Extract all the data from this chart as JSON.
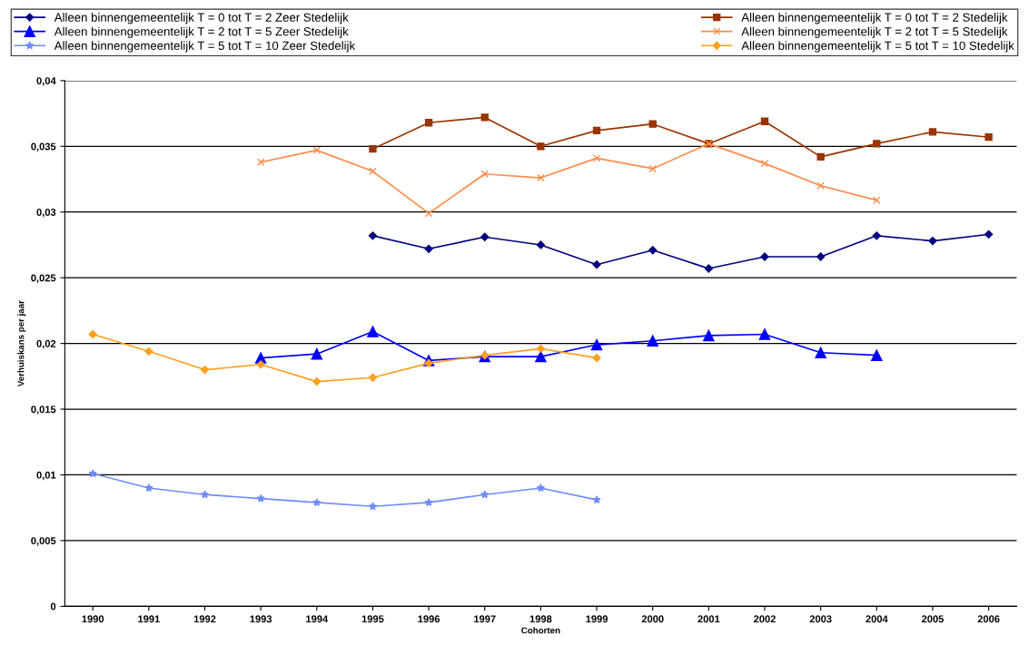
{
  "chart_data": {
    "type": "line",
    "xlabel": "Cohorten",
    "ylabel": "Verhuiskans per jaar",
    "categories": [
      "1990",
      "1991",
      "1992",
      "1993",
      "1994",
      "1995",
      "1996",
      "1997",
      "1998",
      "1999",
      "2000",
      "2001",
      "2002",
      "2003",
      "2004",
      "2005",
      "2006"
    ],
    "series": [
      {
        "name": "Alleen binnengemeentelijk T = 0 tot T = 2 Zeer Stedelijk",
        "color": "#000080",
        "marker": "diamond",
        "values": [
          null,
          null,
          null,
          null,
          null,
          0.0282,
          0.0272,
          0.0281,
          0.0275,
          0.026,
          0.0271,
          0.0257,
          0.0266,
          0.0266,
          0.0282,
          0.0278,
          0.0283
        ]
      },
      {
        "name": "Alleen binnengemeentelijk T = 0 tot T = 2 Stedelijk",
        "color": "#993300",
        "marker": "square",
        "values": [
          null,
          null,
          null,
          null,
          null,
          0.0348,
          0.0368,
          0.0372,
          0.035,
          0.0362,
          0.0367,
          0.0352,
          0.0369,
          0.0342,
          0.0352,
          0.0361,
          0.0357
        ]
      },
      {
        "name": "Alleen binnengemeentelijk T = 2 tot T = 5 Zeer Stedelijk",
        "color": "#0000ff",
        "marker": "triangle",
        "values": [
          null,
          null,
          null,
          0.0189,
          0.0192,
          0.0209,
          0.0187,
          0.019,
          0.019,
          0.0199,
          0.0202,
          0.0206,
          0.0207,
          0.0193,
          0.0191,
          null,
          null
        ]
      },
      {
        "name": "Alleen binnengemeentelijk T = 2 tot T = 5 Stedelijk",
        "color": "#ff8c4a",
        "marker": "cross",
        "values": [
          null,
          null,
          null,
          0.0338,
          0.0347,
          0.0331,
          0.0299,
          0.0329,
          0.0326,
          0.0341,
          0.0333,
          0.0352,
          0.0337,
          0.032,
          0.0309,
          null,
          null
        ]
      },
      {
        "name": "Alleen binnengemeentelijk T = 5 tot T = 10 Zeer Stedelijk",
        "color": "#6f8cff",
        "marker": "star",
        "values": [
          0.0101,
          0.009,
          0.0085,
          0.0082,
          0.0079,
          0.0076,
          0.0079,
          0.0085,
          0.009,
          0.0081,
          null,
          null,
          null,
          null,
          null,
          null,
          null
        ]
      },
      {
        "name": "Alleen binnengemeentelijk T = 5 tot T = 10 Stedelijk",
        "color": "#ffa01e",
        "marker": "diamond",
        "values": [
          0.0207,
          0.0194,
          0.018,
          0.0184,
          0.0171,
          0.0174,
          0.0185,
          0.0191,
          0.0196,
          0.0189,
          null,
          null,
          null,
          null,
          null,
          null,
          null
        ]
      }
    ],
    "ylim": [
      0,
      0.04
    ],
    "yticks": [
      {
        "value": 0,
        "label": "0"
      },
      {
        "value": 0.005,
        "label": "0,005"
      },
      {
        "value": 0.01,
        "label": "0,01"
      },
      {
        "value": 0.015,
        "label": "0,015"
      },
      {
        "value": 0.02,
        "label": "0,02"
      },
      {
        "value": 0.025,
        "label": "0,025"
      },
      {
        "value": 0.03,
        "label": "0,03"
      },
      {
        "value": 0.035,
        "label": "0,035"
      },
      {
        "value": 0.04,
        "label": "0,04"
      }
    ],
    "grid": "y",
    "legend": "top",
    "line_style": "solid"
  }
}
